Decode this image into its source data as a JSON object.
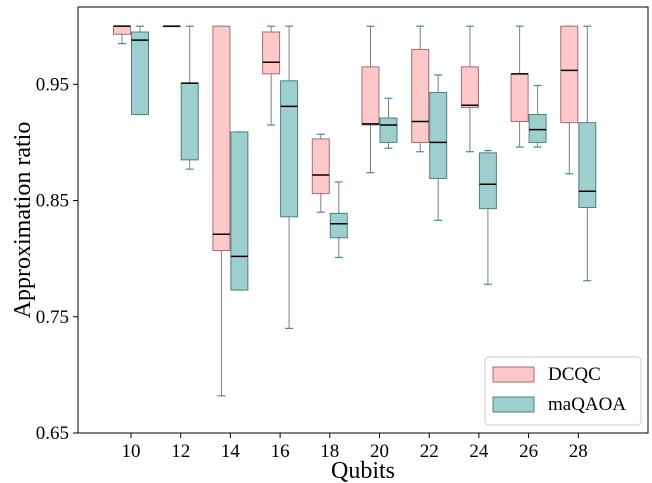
{
  "chart_data": {
    "type": "box",
    "title": "",
    "xlabel": "Qubits",
    "ylabel": "Approximation ratio",
    "categories": [
      "10",
      "12",
      "14",
      "16",
      "18",
      "20",
      "22",
      "24",
      "26",
      "28"
    ],
    "ylim": [
      0.65,
      1.01
    ],
    "yticks": [
      0.65,
      0.75,
      0.85,
      0.95
    ],
    "ytick_labels": [
      "0.65",
      "0.75",
      "0.85",
      "0.95"
    ],
    "grid": false,
    "legend_position": "bottom-right",
    "series": [
      {
        "name": "DCQC",
        "color": "#ffc8c8",
        "edge_color": "#a07070",
        "boxes": [
          {
            "whisker_low": 0.985,
            "q1": 0.993,
            "median": 1.0,
            "q3": 1.0,
            "whisker_high": 1.0
          },
          {
            "whisker_low": 1.0,
            "q1": 1.0,
            "median": 1.0,
            "q3": 1.0,
            "whisker_high": 1.0
          },
          {
            "whisker_low": 0.682,
            "q1": 0.807,
            "median": 0.821,
            "q3": 1.0,
            "whisker_high": 1.0
          },
          {
            "whisker_low": 0.915,
            "q1": 0.959,
            "median": 0.969,
            "q3": 0.995,
            "whisker_high": 1.0
          },
          {
            "whisker_low": 0.84,
            "q1": 0.856,
            "median": 0.872,
            "q3": 0.903,
            "whisker_high": 0.907
          },
          {
            "whisker_low": 0.874,
            "q1": 0.915,
            "median": 0.916,
            "q3": 0.965,
            "whisker_high": 1.0
          },
          {
            "whisker_low": 0.892,
            "q1": 0.9,
            "median": 0.918,
            "q3": 0.98,
            "whisker_high": 1.0
          },
          {
            "whisker_low": 0.892,
            "q1": 0.93,
            "median": 0.932,
            "q3": 0.965,
            "whisker_high": 1.0
          },
          {
            "whisker_low": 0.896,
            "q1": 0.918,
            "median": 0.959,
            "q3": 0.959,
            "whisker_high": 1.0
          },
          {
            "whisker_low": 0.873,
            "q1": 0.917,
            "median": 0.962,
            "q3": 1.0,
            "whisker_high": 1.0
          }
        ]
      },
      {
        "name": "maQAOA",
        "color": "#9ecfcf",
        "edge_color": "#4f7f7f",
        "boxes": [
          {
            "whisker_low": 0.924,
            "q1": 0.924,
            "median": 0.988,
            "q3": 0.995,
            "whisker_high": 1.0
          },
          {
            "whisker_low": 0.877,
            "q1": 0.885,
            "median": 0.951,
            "q3": 0.951,
            "whisker_high": 1.0
          },
          {
            "whisker_low": 0.773,
            "q1": 0.773,
            "median": 0.802,
            "q3": 0.909,
            "whisker_high": 0.909
          },
          {
            "whisker_low": 0.74,
            "q1": 0.836,
            "median": 0.931,
            "q3": 0.953,
            "whisker_high": 1.0
          },
          {
            "whisker_low": 0.801,
            "q1": 0.818,
            "median": 0.83,
            "q3": 0.839,
            "whisker_high": 0.866
          },
          {
            "whisker_low": 0.895,
            "q1": 0.9,
            "median": 0.915,
            "q3": 0.921,
            "whisker_high": 0.938
          },
          {
            "whisker_low": 0.833,
            "q1": 0.869,
            "median": 0.9,
            "q3": 0.943,
            "whisker_high": 0.958
          },
          {
            "whisker_low": 0.778,
            "q1": 0.843,
            "median": 0.864,
            "q3": 0.891,
            "whisker_high": 0.893
          },
          {
            "whisker_low": 0.896,
            "q1": 0.9,
            "median": 0.911,
            "q3": 0.924,
            "whisker_high": 0.949
          },
          {
            "whisker_low": 0.781,
            "q1": 0.844,
            "median": 0.858,
            "q3": 0.917,
            "whisker_high": 1.0
          }
        ]
      }
    ]
  }
}
